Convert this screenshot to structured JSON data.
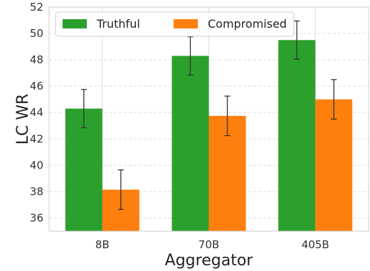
{
  "chart_data": {
    "type": "bar",
    "xlabel": "Aggregator",
    "ylabel": "LC WR",
    "categories": [
      "8B",
      "70B",
      "405B"
    ],
    "series": [
      {
        "name": "Truthful",
        "color": "#2ca02c",
        "values": [
          44.3,
          48.3,
          49.5
        ],
        "errors": [
          1.45,
          1.45,
          1.45
        ]
      },
      {
        "name": "Compromised",
        "color": "#ff7f0e",
        "values": [
          38.15,
          43.75,
          45.0
        ],
        "errors": [
          1.5,
          1.5,
          1.5
        ]
      }
    ],
    "ylim": [
      35,
      52
    ],
    "yticks": [
      36,
      38,
      40,
      42,
      44,
      46,
      48,
      50,
      52
    ],
    "grid": true,
    "legend_position": "top-left"
  }
}
